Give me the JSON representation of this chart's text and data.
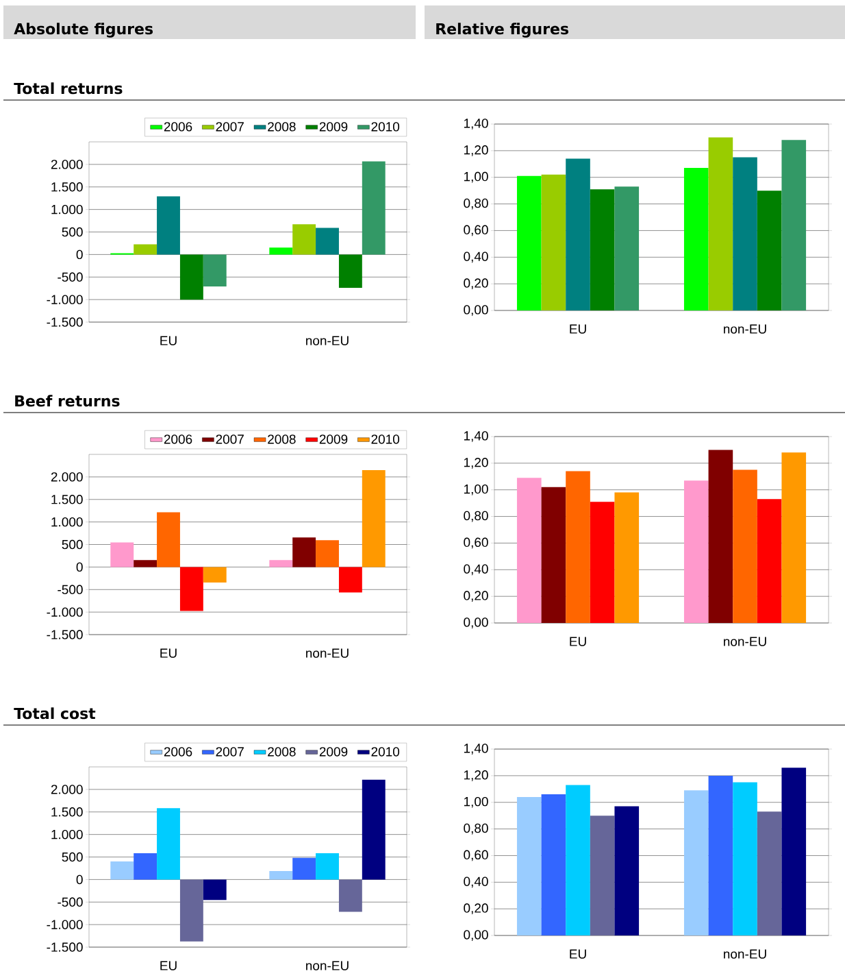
{
  "chart_data": [
    {
      "type": "bar",
      "title": "Total returns",
      "subtitle": "Absolute figures",
      "categories": [
        "EU",
        "non-EU"
      ],
      "ylim": [
        -1500,
        2500
      ],
      "yticks": [
        {
          "value": -1500,
          "label": "-1.500"
        },
        {
          "value": -1000,
          "label": "-1.000"
        },
        -500,
        0,
        500,
        {
          "value": 1000,
          "label": "1.000"
        },
        {
          "value": 1500,
          "label": "1.500"
        },
        {
          "value": 2000,
          "label": "2.000"
        }
      ],
      "grid": "y",
      "legend": "top",
      "series": [
        {
          "name": "2006",
          "color": "#00ff00",
          "values": [
            30,
            155
          ]
        },
        {
          "name": "2007",
          "color": "#99cc00",
          "values": [
            225,
            670
          ]
        },
        {
          "name": "2008",
          "color": "#008080",
          "values": [
            1290,
            590
          ]
        },
        {
          "name": "2009",
          "color": "#008000",
          "values": [
            -1000,
            -740
          ]
        },
        {
          "name": "2010",
          "color": "#339966",
          "values": [
            -710,
            2065
          ]
        }
      ]
    },
    {
      "type": "bar",
      "subtitle": "Relative figures",
      "categories": [
        "EU",
        "non-EU"
      ],
      "ylim": [
        0,
        1.4
      ],
      "yticks": [
        {
          "value": 0,
          "label": "0,00"
        },
        {
          "value": 0.2,
          "label": "0,20"
        },
        {
          "value": 0.4,
          "label": "0,40"
        },
        {
          "value": 0.6,
          "label": "0,60"
        },
        {
          "value": 0.8,
          "label": "0,80"
        },
        {
          "value": 1.0,
          "label": "1,00"
        },
        {
          "value": 1.2,
          "label": "1,20"
        },
        {
          "value": 1.4,
          "label": "1,40"
        }
      ],
      "grid": "y",
      "series": [
        {
          "color": "#00ff00",
          "values": [
            1.01,
            1.07
          ]
        },
        {
          "color": "#99cc00",
          "values": [
            1.02,
            1.3
          ]
        },
        {
          "color": "#008080",
          "values": [
            1.14,
            1.15
          ]
        },
        {
          "color": "#008000",
          "values": [
            0.91,
            0.9
          ]
        },
        {
          "color": "#339966",
          "values": [
            0.93,
            1.28
          ]
        }
      ]
    },
    {
      "type": "bar",
      "title": "Beef returns",
      "categories": [
        "EU",
        "non-EU"
      ],
      "ylim": [
        -1500,
        2500
      ],
      "yticks": [
        {
          "value": -1500,
          "label": "-1.500"
        },
        {
          "value": -1000,
          "label": "-1.000"
        },
        -500,
        0,
        500,
        {
          "value": 1000,
          "label": "1.000"
        },
        {
          "value": 1500,
          "label": "1.500"
        },
        {
          "value": 2000,
          "label": "2.000"
        }
      ],
      "grid": "y",
      "legend": "top",
      "series": [
        {
          "name": "2006",
          "color": "#ff99cc",
          "values": [
            545,
            155
          ]
        },
        {
          "name": "2007",
          "color": "#800000",
          "values": [
            155,
            655
          ]
        },
        {
          "name": "2008",
          "color": "#ff6600",
          "values": [
            1215,
            595
          ]
        },
        {
          "name": "2009",
          "color": "#ff0000",
          "values": [
            -975,
            -565
          ]
        },
        {
          "name": "2010",
          "color": "#ff9900",
          "values": [
            -345,
            2150
          ]
        }
      ]
    },
    {
      "type": "bar",
      "categories": [
        "EU",
        "non-EU"
      ],
      "ylim": [
        0,
        1.4
      ],
      "yticks": [
        {
          "value": 0,
          "label": "0,00"
        },
        {
          "value": 0.2,
          "label": "0,20"
        },
        {
          "value": 0.4,
          "label": "0,40"
        },
        {
          "value": 0.6,
          "label": "0,60"
        },
        {
          "value": 0.8,
          "label": "0,80"
        },
        {
          "value": 1.0,
          "label": "1,00"
        },
        {
          "value": 1.2,
          "label": "1,20"
        },
        {
          "value": 1.4,
          "label": "1,40"
        }
      ],
      "grid": "y",
      "series": [
        {
          "color": "#ff99cc",
          "values": [
            1.09,
            1.07
          ]
        },
        {
          "color": "#800000",
          "values": [
            1.02,
            1.3
          ]
        },
        {
          "color": "#ff6600",
          "values": [
            1.14,
            1.15
          ]
        },
        {
          "color": "#ff0000",
          "values": [
            0.91,
            0.93
          ]
        },
        {
          "color": "#ff9900",
          "values": [
            0.98,
            1.28
          ]
        }
      ]
    },
    {
      "type": "bar",
      "title": "Total cost",
      "categories": [
        "EU",
        "non-EU"
      ],
      "ylim": [
        -1500,
        2500
      ],
      "yticks": [
        {
          "value": -1500,
          "label": "-1.500"
        },
        {
          "value": -1000,
          "label": "-1.000"
        },
        -500,
        0,
        500,
        {
          "value": 1000,
          "label": "1.000"
        },
        {
          "value": 1500,
          "label": "1.500"
        },
        {
          "value": 2000,
          "label": "2.000"
        }
      ],
      "grid": "y",
      "legend": "top",
      "series": [
        {
          "name": "2006",
          "color": "#99ccff",
          "values": [
            400,
            190
          ]
        },
        {
          "name": "2007",
          "color": "#3366ff",
          "values": [
            585,
            480
          ]
        },
        {
          "name": "2008",
          "color": "#00ccff",
          "values": [
            1585,
            585
          ]
        },
        {
          "name": "2009",
          "color": "#666699",
          "values": [
            -1375,
            -715
          ]
        },
        {
          "name": "2010",
          "color": "#000080",
          "values": [
            -455,
            2215
          ]
        }
      ]
    },
    {
      "type": "bar",
      "categories": [
        "EU",
        "non-EU"
      ],
      "ylim": [
        0,
        1.4
      ],
      "yticks": [
        {
          "value": 0,
          "label": "0,00"
        },
        {
          "value": 0.2,
          "label": "0,20"
        },
        {
          "value": 0.4,
          "label": "0,40"
        },
        {
          "value": 0.6,
          "label": "0,60"
        },
        {
          "value": 0.8,
          "label": "0,80"
        },
        {
          "value": 1.0,
          "label": "1,00"
        },
        {
          "value": 1.2,
          "label": "1,20"
        },
        {
          "value": 1.4,
          "label": "1,40"
        }
      ],
      "grid": "y",
      "series": [
        {
          "color": "#99ccff",
          "values": [
            1.04,
            1.09
          ]
        },
        {
          "color": "#3366ff",
          "values": [
            1.06,
            1.2
          ]
        },
        {
          "color": "#00ccff",
          "values": [
            1.13,
            1.15
          ]
        },
        {
          "color": "#666699",
          "values": [
            0.9,
            0.93
          ]
        },
        {
          "color": "#000080",
          "values": [
            0.97,
            1.26
          ]
        }
      ]
    }
  ]
}
